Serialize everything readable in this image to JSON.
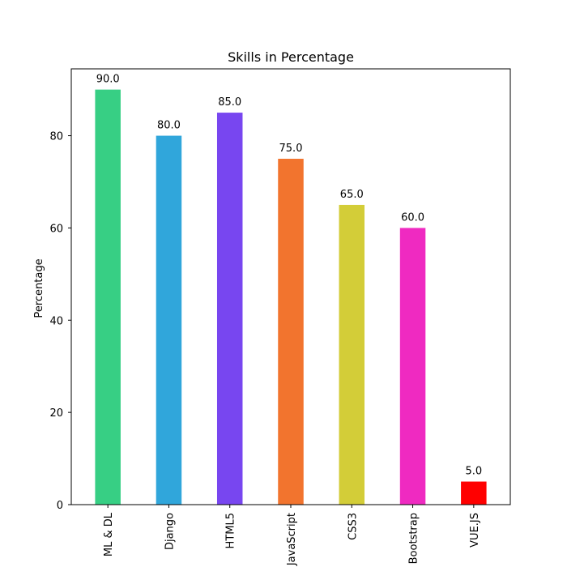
{
  "chart_data": {
    "type": "bar",
    "title": "Skills in Percentage",
    "xlabel": "",
    "ylabel": "Percentage",
    "categories": [
      "ML & DL",
      "Django",
      "HTML5",
      "JavaScript",
      "CSS3",
      "Bootstrap",
      "VUE.JS"
    ],
    "values": [
      90,
      80,
      85,
      75,
      65,
      60,
      5
    ],
    "value_labels": [
      "90.0",
      "80.0",
      "85.0",
      "75.0",
      "65.0",
      "60.0",
      "5.0"
    ],
    "colors": [
      "#37cf84",
      "#30a6db",
      "#7846f0",
      "#f2742e",
      "#d3cd38",
      "#ef2ac1",
      "#ff0000"
    ],
    "yticks": [
      0,
      20,
      40,
      60,
      80
    ],
    "ylim": [
      0,
      94.5
    ],
    "grid": false,
    "legend": "none"
  }
}
